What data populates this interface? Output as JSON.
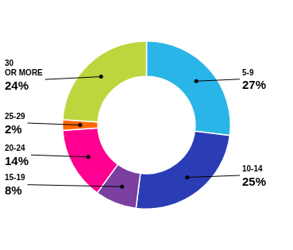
{
  "chart_data": {
    "type": "doughnut",
    "categories": [
      "5-9",
      "10-14",
      "15-19",
      "20-24",
      "25-29",
      "30\nOR MORE"
    ],
    "values": [
      27,
      25,
      8,
      14,
      2,
      24
    ],
    "value_labels": [
      "27%",
      "25%",
      "8%",
      "14%",
      "2%",
      "24%"
    ],
    "colors": [
      "#29b5e8",
      "#2b3db5",
      "#7b3fa0",
      "#ff0090",
      "#ff6600",
      "#bcd63e"
    ],
    "data_labels": true,
    "legend": false
  }
}
